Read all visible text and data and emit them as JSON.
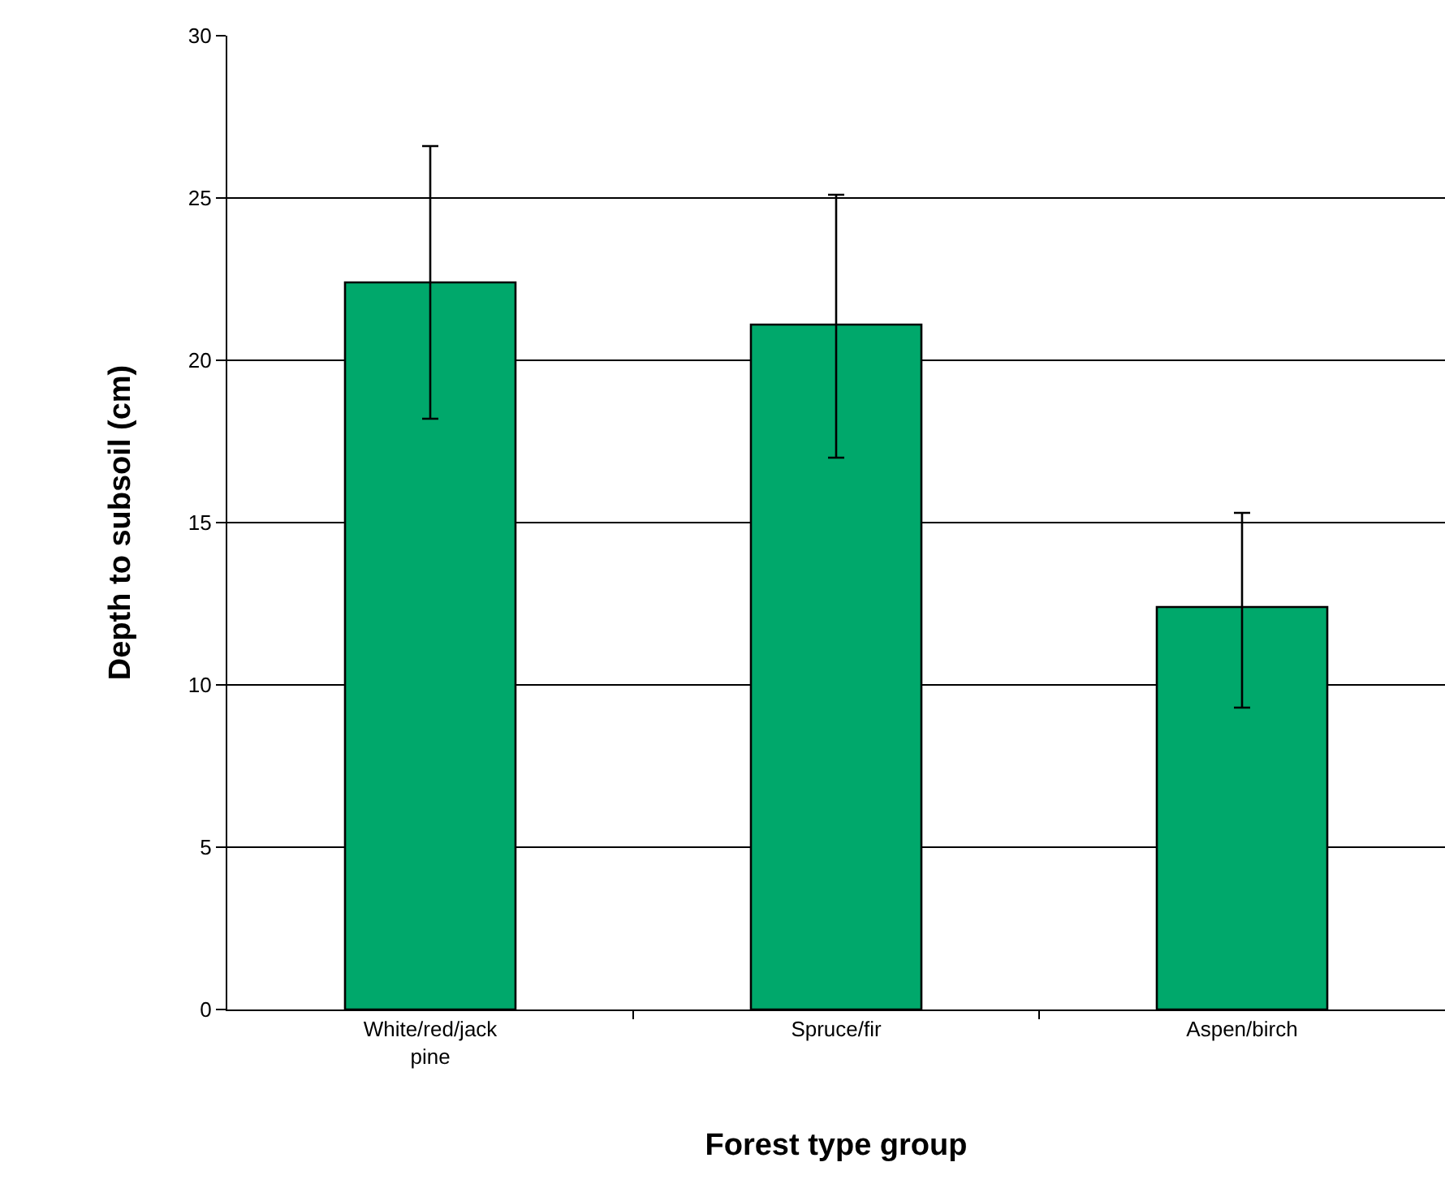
{
  "chart_data": {
    "type": "bar",
    "xlabel": "Forest type group",
    "ylabel": "Depth to subsoil (cm)",
    "categories": [
      "White/red/jack pine",
      "Spruce/fir",
      "Aspen/birch"
    ],
    "values": [
      22.4,
      21.1,
      12.4
    ],
    "color": "#00a86b",
    "errors": [
      [
        18.2,
        26.6
      ],
      [
        17.0,
        25.1
      ],
      [
        9.3,
        15.3
      ]
    ],
    "ylim": [
      0,
      30
    ],
    "yticks": [
      0,
      5,
      10,
      15,
      20,
      25,
      30
    ],
    "grid": "y",
    "legend": false
  }
}
